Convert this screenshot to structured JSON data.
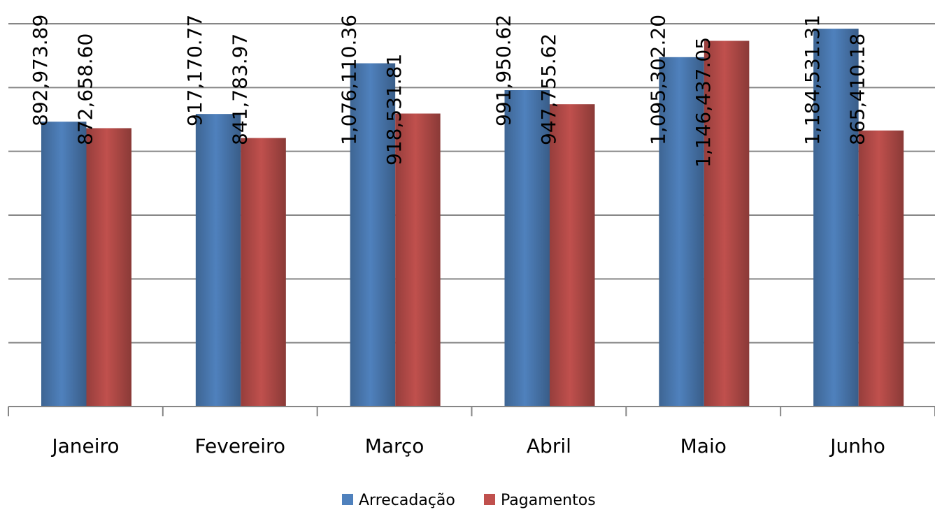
{
  "chart_data": {
    "type": "bar",
    "categories": [
      "Janeiro",
      "Fevereiro",
      "Março",
      "Abril",
      "Maio",
      "Junho"
    ],
    "series": [
      {
        "name": "Arrecadação",
        "color": "#4F81BD",
        "values": [
          892973.89,
          917170.77,
          1076110.36,
          991950.62,
          1095302.2,
          1184531.31
        ],
        "labels": [
          "892,973.89",
          "917,170.77",
          "1,076,110.36",
          "991,950.62",
          "1,095,302.20",
          "1,184,531.31"
        ]
      },
      {
        "name": "Pagamentos",
        "color": "#C0504D",
        "values": [
          872658.6,
          841783.97,
          918531.81,
          947755.62,
          1146437.05,
          865410.18
        ],
        "labels": [
          "872,658.60",
          "841,783.97",
          "918,531.81",
          "947,755.62",
          "1,146,437.05",
          "865,410.18"
        ]
      }
    ],
    "ylim": [
      0,
      1200000
    ],
    "grid": true,
    "legend_position": "bottom",
    "title": "",
    "xlabel": "",
    "ylabel": ""
  }
}
